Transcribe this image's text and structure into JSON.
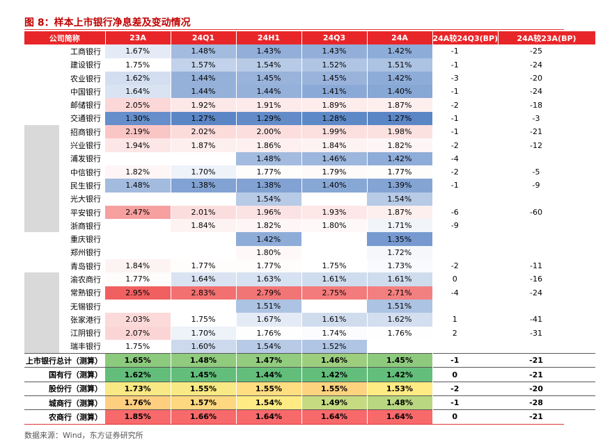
{
  "title": "图 8：样本上市银行净息差及变动情况",
  "table": {
    "header": [
      "公司简称",
      "23A",
      "24Q1",
      "24H1",
      "24Q3",
      "24A",
      "24A较24Q3(BP)",
      "24A较23A(BP)"
    ],
    "rows": [
      [
        "工商银行",
        "1.67%",
        "1.48%",
        "1.43%",
        "1.43%",
        "1.42%",
        -1,
        -25
      ],
      [
        "建设银行",
        "1.75%",
        "1.57%",
        "1.54%",
        "1.52%",
        "1.51%",
        -1,
        -24
      ],
      [
        "农业银行",
        "1.62%",
        "1.44%",
        "1.45%",
        "1.45%",
        "1.42%",
        -3,
        -20
      ],
      [
        "中国银行",
        "1.64%",
        "1.44%",
        "1.44%",
        "1.41%",
        "1.40%",
        -1,
        -24
      ],
      [
        "邮储银行",
        "2.05%",
        "1.92%",
        "1.91%",
        "1.89%",
        "1.87%",
        -2,
        -18
      ],
      [
        "交通银行",
        "1.30%",
        "1.27%",
        "1.29%",
        "1.28%",
        "1.27%",
        -1,
        -3
      ],
      [
        "招商银行",
        "2.19%",
        "2.02%",
        "2.00%",
        "1.99%",
        "1.98%",
        -1,
        -21
      ],
      [
        "兴业银行",
        "1.94%",
        "1.87%",
        "1.86%",
        "1.84%",
        "1.82%",
        -2,
        -12
      ],
      [
        "浦发银行",
        null,
        null,
        "1.48%",
        "1.46%",
        "1.42%",
        -4,
        null
      ],
      [
        "中信银行",
        "1.82%",
        "1.70%",
        "1.77%",
        "1.79%",
        "1.77%",
        -2,
        -5
      ],
      [
        "民生银行",
        "1.48%",
        "1.38%",
        "1.38%",
        "1.40%",
        "1.39%",
        -1,
        -9
      ],
      [
        "光大银行",
        null,
        null,
        "1.54%",
        null,
        "1.54%",
        null,
        null
      ],
      [
        "平安银行",
        "2.47%",
        "2.01%",
        "1.96%",
        "1.93%",
        "1.87%",
        -6,
        -60
      ],
      [
        "浙商银行",
        null,
        "1.84%",
        "1.82%",
        "1.80%",
        "1.71%",
        -9,
        null
      ],
      [
        "重庆银行",
        null,
        null,
        "1.42%",
        null,
        "1.35%",
        null,
        null
      ],
      [
        "郑州银行",
        null,
        null,
        "1.80%",
        null,
        "1.72%",
        null,
        null
      ],
      [
        "青岛银行",
        "1.84%",
        "1.77%",
        "1.77%",
        "1.75%",
        "1.73%",
        -2,
        -11
      ],
      [
        "渝农商行",
        "1.77%",
        "1.64%",
        "1.63%",
        "1.61%",
        "1.61%",
        0,
        -16
      ],
      [
        "常熟银行",
        "2.95%",
        "2.83%",
        "2.79%",
        "2.75%",
        "2.71%",
        -4,
        -24
      ],
      [
        "无锡银行",
        null,
        null,
        "1.51%",
        null,
        "1.51%",
        null,
        null
      ],
      [
        "张家港行",
        "2.03%",
        "1.75%",
        "1.67%",
        "1.61%",
        "1.62%",
        1,
        -41
      ],
      [
        "江阴银行",
        "2.07%",
        "1.70%",
        "1.76%",
        "1.74%",
        "1.76%",
        2,
        -31
      ],
      [
        "瑞丰银行",
        "1.75%",
        "1.60%",
        "1.54%",
        "1.52%",
        null,
        null,
        null
      ]
    ],
    "summary_rows": [
      [
        "上市银行总计（测算）",
        "1.65%",
        "1.48%",
        "1.47%",
        "1.46%",
        "1.45%",
        -1,
        -21
      ],
      [
        "国有行（测算）",
        "1.62%",
        "1.45%",
        "1.44%",
        "1.42%",
        "1.42%",
        0,
        -21
      ],
      [
        "股份行（测算）",
        "1.73%",
        "1.55%",
        "1.55%",
        "1.55%",
        "1.53%",
        -2,
        -20
      ],
      [
        "城商行（测算）",
        "1.76%",
        "1.57%",
        "1.54%",
        "1.49%",
        "1.48%",
        -1,
        -28
      ],
      [
        "农商行（测算）",
        "1.85%",
        "1.66%",
        "1.64%",
        "1.64%",
        "1.64%",
        0,
        -21
      ]
    ]
  },
  "source": "数据来源：Wind，东方证券研究所"
}
